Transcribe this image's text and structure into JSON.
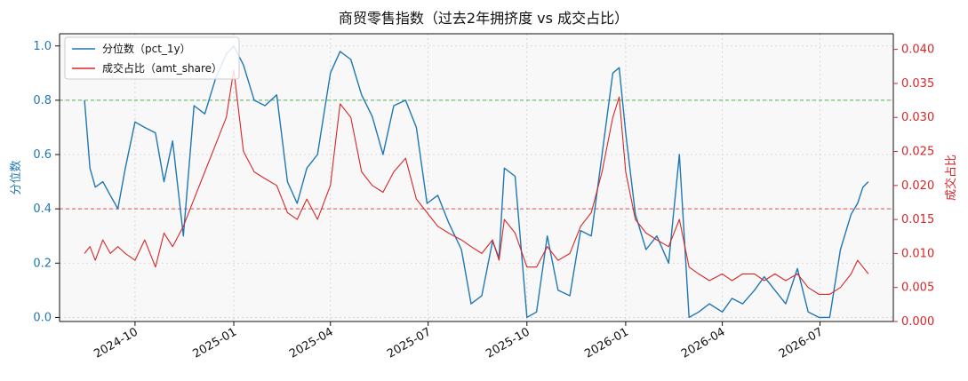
{
  "chart_data": {
    "type": "line",
    "title": "商贸零售指数（过去2年拥挤度 vs 成交占比）",
    "ylabel_left": "分位数",
    "ylabel_right": "成交占比",
    "xlabel": "",
    "x_ticks": [
      "2024-10",
      "2025-01",
      "2025-04",
      "2025-07",
      "2025-10",
      "2026-01",
      "2026-04",
      "2026-07"
    ],
    "ylim_left": [
      0,
      1
    ],
    "yticks_left": [
      "0.0",
      "0.2",
      "0.4",
      "0.6",
      "0.8",
      "1.0"
    ],
    "ylim_right": [
      0,
      0.04
    ],
    "yticks_right": [
      "0.000",
      "0.005",
      "0.010",
      "0.015",
      "0.020",
      "0.025",
      "0.030",
      "0.035",
      "0.040"
    ],
    "hlines": [
      {
        "axis": "left",
        "value": 0.8,
        "color": "#2ca02c",
        "style": "dashed"
      },
      {
        "axis": "left",
        "value": 0.4,
        "color": "#d62728",
        "style": "dashed"
      }
    ],
    "grid": true,
    "legend_position": "top-left",
    "series": [
      {
        "name": "分位数（pct_1y）",
        "axis": "left",
        "color": "#1f77b4",
        "x": [
          "2024-08-15",
          "2024-08-20",
          "2024-08-25",
          "2024-09-01",
          "2024-09-08",
          "2024-09-15",
          "2024-09-22",
          "2024-10-01",
          "2024-10-10",
          "2024-10-20",
          "2024-10-28",
          "2024-11-05",
          "2024-11-15",
          "2024-11-25",
          "2024-12-05",
          "2024-12-15",
          "2024-12-25",
          "2025-01-01",
          "2025-01-10",
          "2025-01-20",
          "2025-01-30",
          "2025-02-10",
          "2025-02-20",
          "2025-03-01",
          "2025-03-10",
          "2025-03-20",
          "2025-04-01",
          "2025-04-10",
          "2025-04-20",
          "2025-04-30",
          "2025-05-10",
          "2025-05-20",
          "2025-05-30",
          "2025-06-10",
          "2025-06-20",
          "2025-06-30",
          "2025-07-10",
          "2025-07-20",
          "2025-08-01",
          "2025-08-10",
          "2025-08-20",
          "2025-08-30",
          "2025-09-05",
          "2025-09-10",
          "2025-09-20",
          "2025-10-01",
          "2025-10-10",
          "2025-10-20",
          "2025-10-30",
          "2025-11-10",
          "2025-11-20",
          "2025-11-30",
          "2025-12-10",
          "2025-12-20",
          "2025-12-26",
          "2026-01-01",
          "2026-01-10",
          "2026-01-20",
          "2026-01-30",
          "2026-02-10",
          "2026-02-20",
          "2026-03-01",
          "2026-03-10",
          "2026-03-20",
          "2026-04-01",
          "2026-04-10",
          "2026-04-20",
          "2026-05-01",
          "2026-05-10",
          "2026-05-20",
          "2026-05-30",
          "2026-06-10",
          "2026-06-20",
          "2026-06-30",
          "2026-07-10",
          "2026-07-20",
          "2026-07-30",
          "2026-08-05",
          "2026-08-10",
          "2026-08-15"
        ],
        "values": [
          0.8,
          0.55,
          0.48,
          0.5,
          0.45,
          0.4,
          0.55,
          0.72,
          0.7,
          0.68,
          0.5,
          0.65,
          0.3,
          0.78,
          0.75,
          0.88,
          0.97,
          1.0,
          0.93,
          0.8,
          0.78,
          0.82,
          0.5,
          0.42,
          0.55,
          0.6,
          0.9,
          0.98,
          0.95,
          0.82,
          0.74,
          0.6,
          0.78,
          0.8,
          0.7,
          0.42,
          0.45,
          0.35,
          0.25,
          0.05,
          0.08,
          0.28,
          0.22,
          0.55,
          0.52,
          0.0,
          0.02,
          0.3,
          0.1,
          0.08,
          0.32,
          0.3,
          0.6,
          0.9,
          0.92,
          0.68,
          0.38,
          0.25,
          0.3,
          0.2,
          0.6,
          0.0,
          0.02,
          0.05,
          0.02,
          0.07,
          0.05,
          0.1,
          0.15,
          0.1,
          0.05,
          0.18,
          0.02,
          0.0,
          0.0,
          0.25,
          0.38,
          0.42,
          0.48,
          0.5
        ]
      },
      {
        "name": "成交占比（amt_share）",
        "axis": "right",
        "color": "#d62728",
        "x": [
          "2024-08-15",
          "2024-08-20",
          "2024-08-25",
          "2024-09-01",
          "2024-09-08",
          "2024-09-15",
          "2024-09-22",
          "2024-10-01",
          "2024-10-10",
          "2024-10-20",
          "2024-10-28",
          "2024-11-05",
          "2024-11-15",
          "2024-11-25",
          "2024-12-05",
          "2024-12-15",
          "2024-12-25",
          "2025-01-01",
          "2025-01-10",
          "2025-01-20",
          "2025-01-30",
          "2025-02-10",
          "2025-02-20",
          "2025-03-01",
          "2025-03-10",
          "2025-03-20",
          "2025-04-01",
          "2025-04-10",
          "2025-04-20",
          "2025-04-30",
          "2025-05-10",
          "2025-05-20",
          "2025-05-30",
          "2025-06-10",
          "2025-06-20",
          "2025-06-30",
          "2025-07-10",
          "2025-07-20",
          "2025-08-01",
          "2025-08-10",
          "2025-08-20",
          "2025-08-30",
          "2025-09-05",
          "2025-09-10",
          "2025-09-20",
          "2025-10-01",
          "2025-10-10",
          "2025-10-20",
          "2025-10-30",
          "2025-11-10",
          "2025-11-20",
          "2025-11-30",
          "2025-12-10",
          "2025-12-20",
          "2025-12-26",
          "2026-01-01",
          "2026-01-10",
          "2026-01-20",
          "2026-01-30",
          "2026-02-10",
          "2026-02-20",
          "2026-03-01",
          "2026-03-10",
          "2026-03-20",
          "2026-04-01",
          "2026-04-10",
          "2026-04-20",
          "2026-05-01",
          "2026-05-10",
          "2026-05-20",
          "2026-05-30",
          "2026-06-10",
          "2026-06-20",
          "2026-06-30",
          "2026-07-10",
          "2026-07-20",
          "2026-07-30",
          "2026-08-05",
          "2026-08-10",
          "2026-08-15"
        ],
        "values": [
          0.01,
          0.011,
          0.009,
          0.012,
          0.01,
          0.011,
          0.01,
          0.009,
          0.012,
          0.008,
          0.013,
          0.011,
          0.014,
          0.018,
          0.022,
          0.026,
          0.03,
          0.037,
          0.025,
          0.022,
          0.021,
          0.02,
          0.016,
          0.015,
          0.018,
          0.015,
          0.02,
          0.032,
          0.03,
          0.022,
          0.02,
          0.019,
          0.022,
          0.024,
          0.018,
          0.016,
          0.014,
          0.013,
          0.012,
          0.011,
          0.01,
          0.012,
          0.009,
          0.015,
          0.013,
          0.008,
          0.008,
          0.011,
          0.009,
          0.01,
          0.014,
          0.016,
          0.022,
          0.03,
          0.033,
          0.022,
          0.015,
          0.013,
          0.012,
          0.011,
          0.015,
          0.008,
          0.007,
          0.006,
          0.007,
          0.006,
          0.007,
          0.007,
          0.006,
          0.007,
          0.006,
          0.007,
          0.005,
          0.004,
          0.004,
          0.005,
          0.007,
          0.009,
          0.008,
          0.007
        ]
      }
    ]
  }
}
